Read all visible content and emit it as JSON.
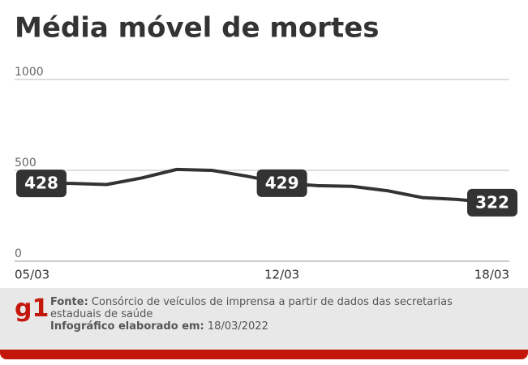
{
  "chart_data": {
    "type": "line",
    "title": "Média móvel de mortes",
    "categories": [
      "05/03",
      null,
      null,
      null,
      null,
      null,
      null,
      "12/03",
      null,
      null,
      null,
      null,
      null,
      "18/03"
    ],
    "values": [
      428,
      428,
      422,
      458,
      505,
      500,
      468,
      429,
      416,
      412,
      388,
      350,
      340,
      322
    ],
    "labeled_indices": [
      0,
      7,
      13
    ],
    "color": "#333333",
    "ylim": [
      0,
      1000
    ],
    "yticks": [
      0,
      500,
      1000
    ],
    "grid": true
  },
  "footer": {
    "logo": "g1",
    "source_label": "Fonte:",
    "source_text": "Consórcio de veículos de imprensa a partir de dados das secretarias estaduais de saúde",
    "credit_label": "Infográfico elaborado em:",
    "credit_date": "18/03/2022"
  }
}
